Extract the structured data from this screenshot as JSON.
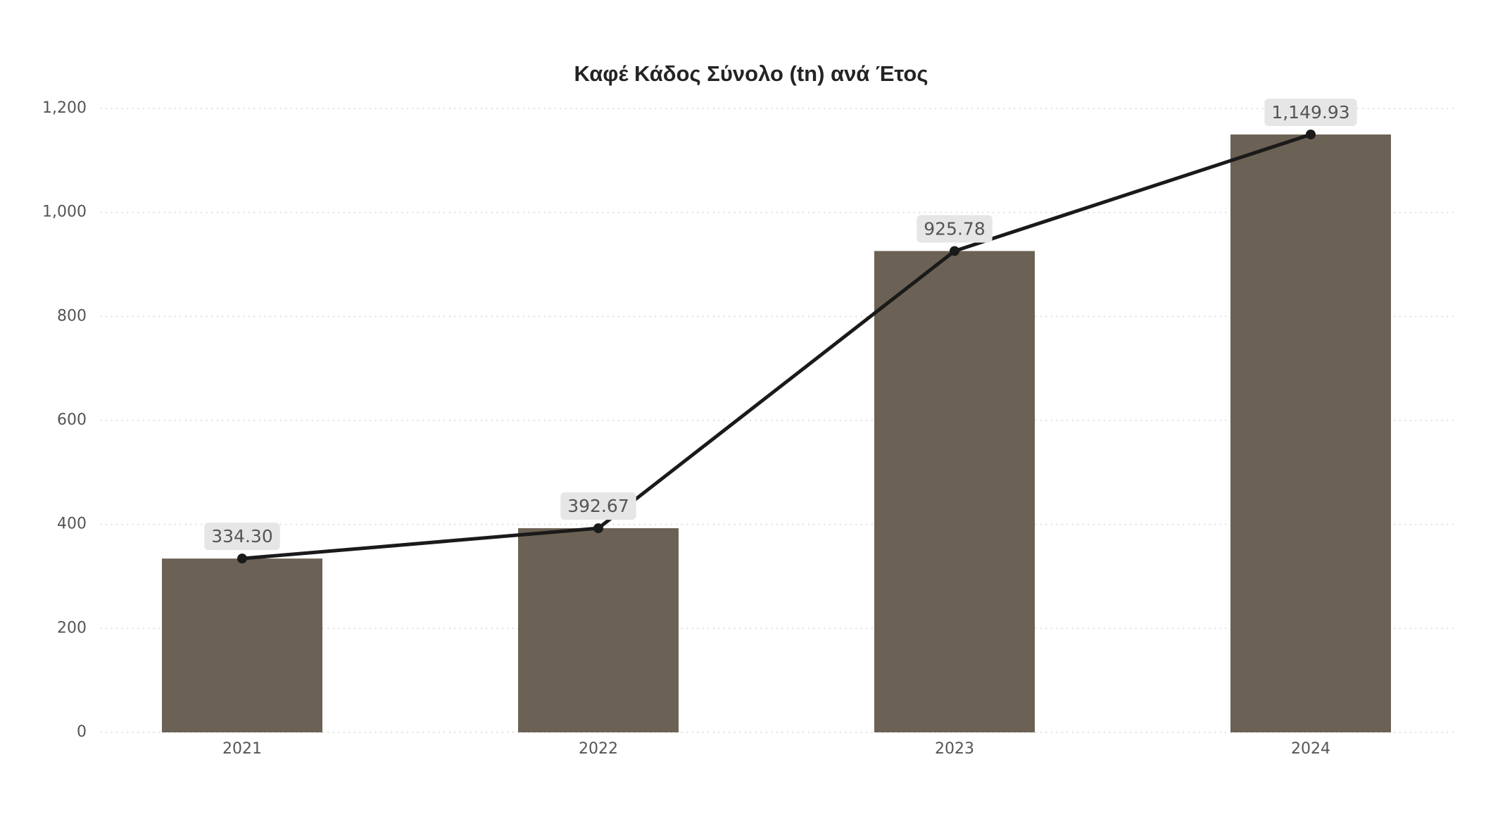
{
  "chart_data": {
    "type": "bar",
    "title": "Καφέ Κάδος Σύνολο (tn) ανά Έτος",
    "categories": [
      "2021",
      "2022",
      "2023",
      "2024"
    ],
    "values": [
      334.3,
      392.67,
      925.78,
      1149.93
    ],
    "value_labels": [
      "334.30",
      "392.67",
      "925.78",
      "1,149.93"
    ],
    "color": "#6b6154",
    "line_overlay": true,
    "line_color": "#1a1a1a",
    "ylim": [
      0,
      1200
    ],
    "yticks": [
      0,
      200,
      400,
      600,
      800,
      {
        "value": 1000,
        "label": "1,000"
      },
      {
        "value": 1200,
        "label": "1,200"
      }
    ],
    "grid": true
  }
}
